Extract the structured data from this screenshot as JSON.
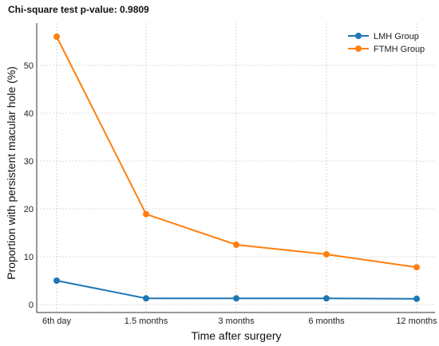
{
  "chart_data": {
    "type": "line",
    "title": "Chi-square test p-value: 0.9809",
    "xlabel": "Time after surgery",
    "ylabel": "Proportion with persistent macular hole (%)",
    "categories": [
      "6th day",
      "1.5 months",
      "3 months",
      "6 months",
      "12 months"
    ],
    "ylim": [
      -2,
      58
    ],
    "yticks": [
      0,
      10,
      20,
      30,
      40,
      50
    ],
    "grid": true,
    "legend_position": "top-right",
    "series": [
      {
        "name": "LMH Group",
        "color": "#1f77b4",
        "values": [
          5.0,
          1.3,
          1.3,
          1.3,
          1.2
        ]
      },
      {
        "name": "FTMH Group",
        "color": "#ff7f0e",
        "values": [
          56.0,
          18.9,
          12.5,
          10.5,
          7.8
        ]
      }
    ]
  }
}
